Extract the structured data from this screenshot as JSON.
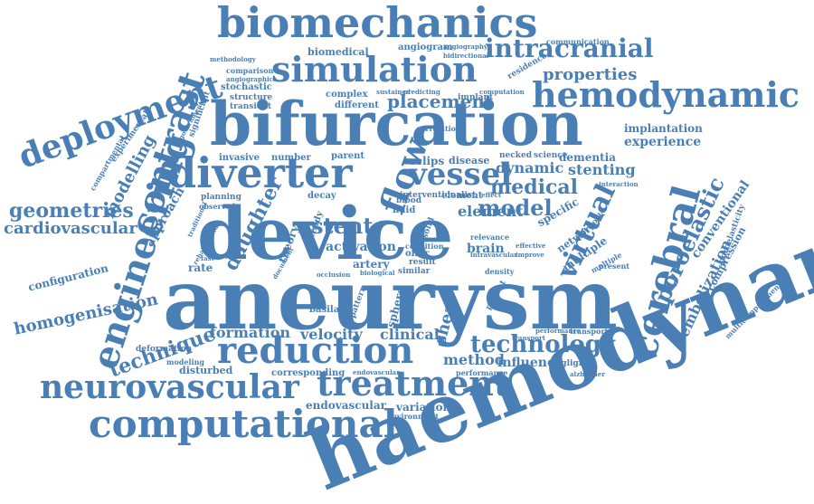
{
  "colors": {
    "word": "#4a7fb5",
    "background": "#ffffff"
  },
  "words": [
    "biomechanics",
    "intracranial",
    "simulation",
    "hemodynamic",
    "deployment",
    "bifurcation",
    "contrast",
    "diverter",
    "vessel",
    "flow",
    "cerebral",
    "device",
    "aneurysm",
    "engineering",
    "geometries",
    "cardiovascular",
    "modelling",
    "daughter",
    "stent",
    "model",
    "medical",
    "virtual",
    "poroelastic",
    "reduction",
    "technology",
    "treatment",
    "neurovascular",
    "computational",
    "haemodynamic",
    "technique",
    "homogenisation",
    "configuration",
    "embolization",
    "conventional",
    "compression",
    "poroelasticity",
    "multicompartmental",
    "properties",
    "placement",
    "angiogram",
    "biomedical",
    "comparison",
    "methodology",
    "communication",
    "residence",
    "angiography",
    "bidirectional",
    "complex",
    "different",
    "sustained",
    "predicting",
    "implant",
    "computation",
    "stochastic",
    "structure",
    "transient",
    "angiographic",
    "significant",
    "government",
    "experimental",
    "compartmental",
    "implantation",
    "experience",
    "dynamic",
    "stenting",
    "eclips",
    "disease",
    "dementia",
    "necked",
    "science",
    "invasive",
    "number",
    "parent",
    "correlation",
    "approach",
    "planning",
    "observed",
    "decay",
    "steady",
    "element",
    "fluid",
    "blood",
    "study",
    "specific",
    "network",
    "validation",
    "multiple",
    "present",
    "postnotes",
    "theory",
    "activation",
    "rate",
    "artery",
    "brain",
    "relevance",
    "effective",
    "improve",
    "offer",
    "result",
    "similar",
    "density",
    "patient",
    "basilar",
    "sphere",
    "pattern",
    "clinical",
    "shear",
    "velocity",
    "formation",
    "deformation",
    "method",
    "influence",
    "negligible",
    "performance",
    "transport",
    "modeling",
    "disturbed",
    "corresponding",
    "endovascular",
    "variation",
    "environment",
    "interaction",
    "alzheimer",
    "interventionalist",
    "condition",
    "intravascular",
    "effect",
    "solid",
    "internal",
    "accurate",
    "fast",
    "rehabilitation",
    "mechanism",
    "traditional",
    "document",
    "secondary",
    "biological",
    "occlusion",
    "predicted",
    "whuss",
    "matrix"
  ]
}
